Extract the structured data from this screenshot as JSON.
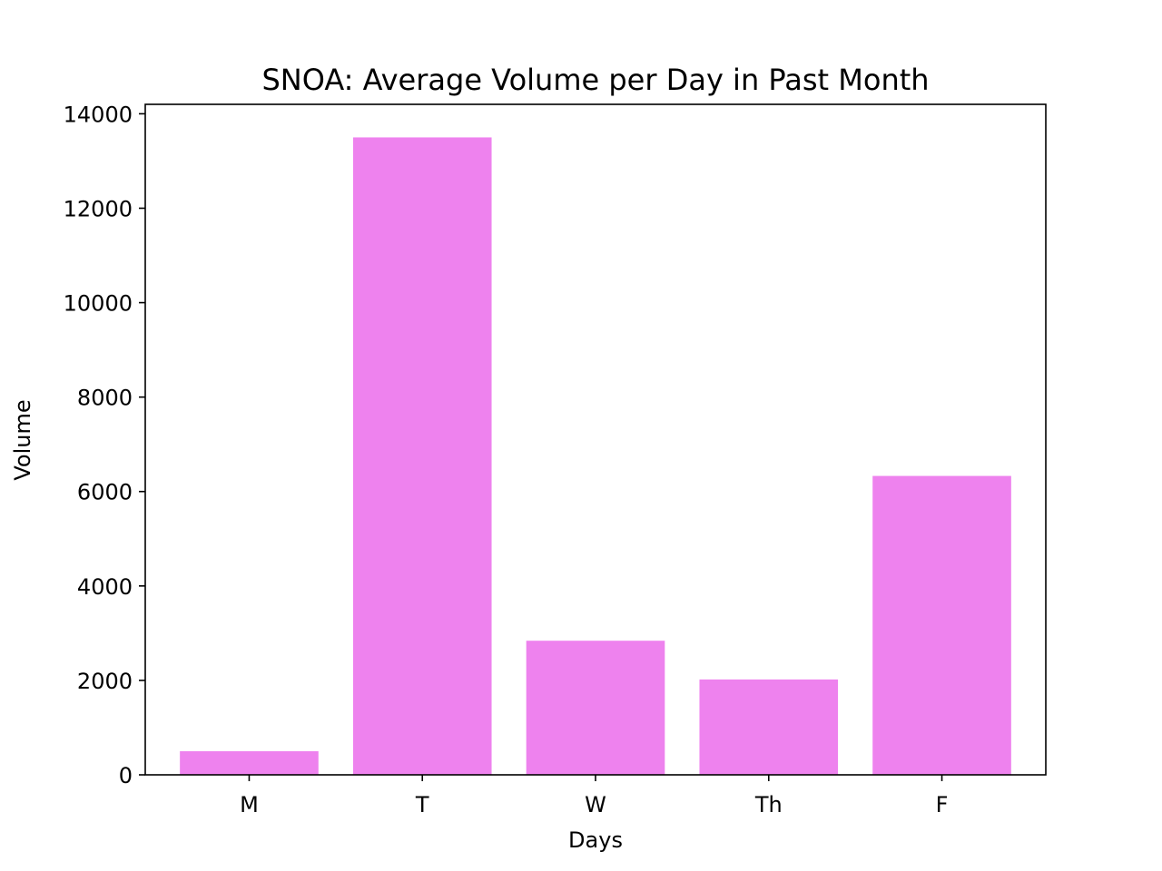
{
  "chart_data": {
    "type": "bar",
    "title": "SNOA: Average Volume per Day in Past Month",
    "xlabel": "Days",
    "ylabel": "Volume",
    "categories": [
      "M",
      "T",
      "W",
      "Th",
      "F"
    ],
    "values": [
      500,
      13500,
      2840,
      2020,
      6330
    ],
    "ylim": [
      0,
      14200
    ],
    "yticks": [
      0,
      2000,
      4000,
      6000,
      8000,
      10000,
      12000,
      14000
    ],
    "bar_color": "#ee82ee",
    "grid": false,
    "legend": "none"
  }
}
